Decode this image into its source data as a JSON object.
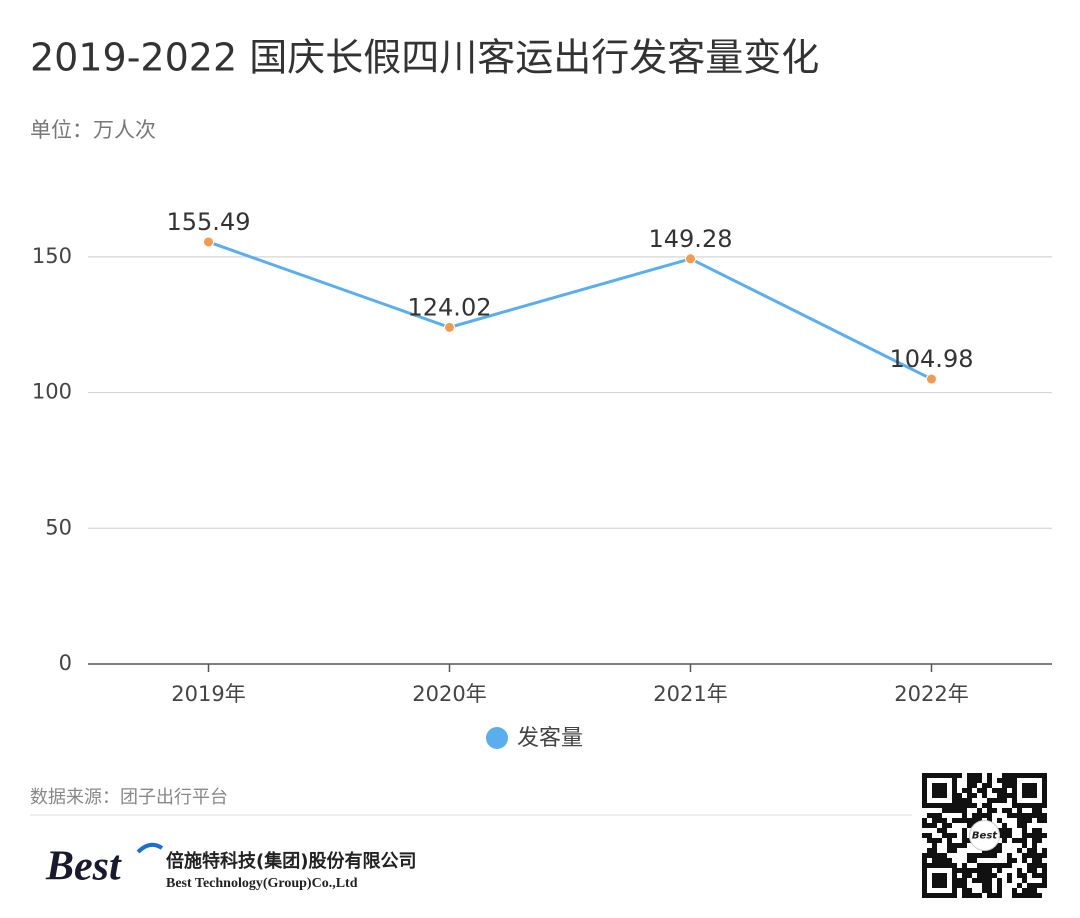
{
  "chart_data": {
    "type": "line",
    "title": "2019-2022 国庆长假四川客运出行发客量变化",
    "subtitle": "单位：万人次",
    "categories": [
      "2019年",
      "2020年",
      "2021年",
      "2022年"
    ],
    "series": [
      {
        "name": "发客量",
        "color": "#5aaeee",
        "marker_color": "#f59a4c",
        "values": [
          155.49,
          124.02,
          149.28,
          104.98
        ]
      }
    ],
    "ylim": [
      0,
      175
    ],
    "yticks": [
      0,
      50,
      100,
      150
    ],
    "grid": true,
    "legend": "bottom"
  },
  "footer": {
    "source": "数据来源：团子出行平台",
    "logo": "Best",
    "company_cn": "倍施特科技(集团)股份有限公司",
    "company_en": "Best Technology(Group)Co.,Ltd",
    "qr_logo": "Best"
  }
}
